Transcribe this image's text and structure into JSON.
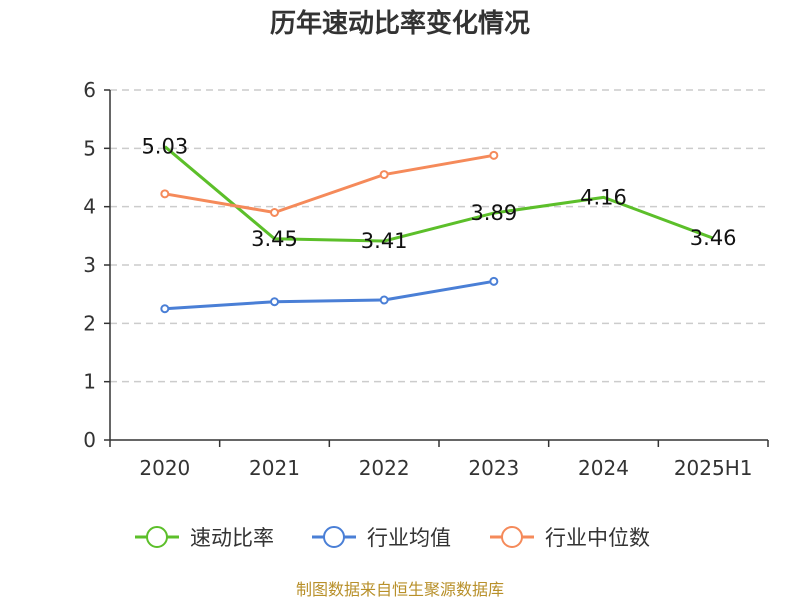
{
  "title": "历年速动比率变化情况",
  "source_note": "制图数据来自恒生聚源数据库",
  "chart_data": {
    "type": "line",
    "title": "历年速动比率变化情况",
    "xlabel": "",
    "ylabel": "",
    "categories": [
      "2020",
      "2021",
      "2022",
      "2023",
      "2024",
      "2025H1"
    ],
    "ylim": [
      0,
      6
    ],
    "yticks": [
      "0",
      "1",
      "2",
      "3",
      "4",
      "5",
      "6"
    ],
    "grid": true,
    "legend_position": "bottom",
    "series": [
      {
        "name": "速动比率",
        "color": "#5cbf2a",
        "values": [
          5.03,
          3.45,
          3.41,
          3.89,
          4.16,
          3.46
        ],
        "labels": [
          "5.03",
          "3.45",
          "3.41",
          "3.89",
          "4.16",
          "3.46"
        ],
        "markers": false
      },
      {
        "name": "行业均值",
        "color": "#4a7fd6",
        "values": [
          2.25,
          2.37,
          2.4,
          2.72,
          null,
          null
        ],
        "markers": true
      },
      {
        "name": "行业中位数",
        "color": "#f58a5a",
        "values": [
          4.22,
          3.9,
          4.55,
          4.88,
          null,
          null
        ],
        "markers": true
      }
    ]
  }
}
